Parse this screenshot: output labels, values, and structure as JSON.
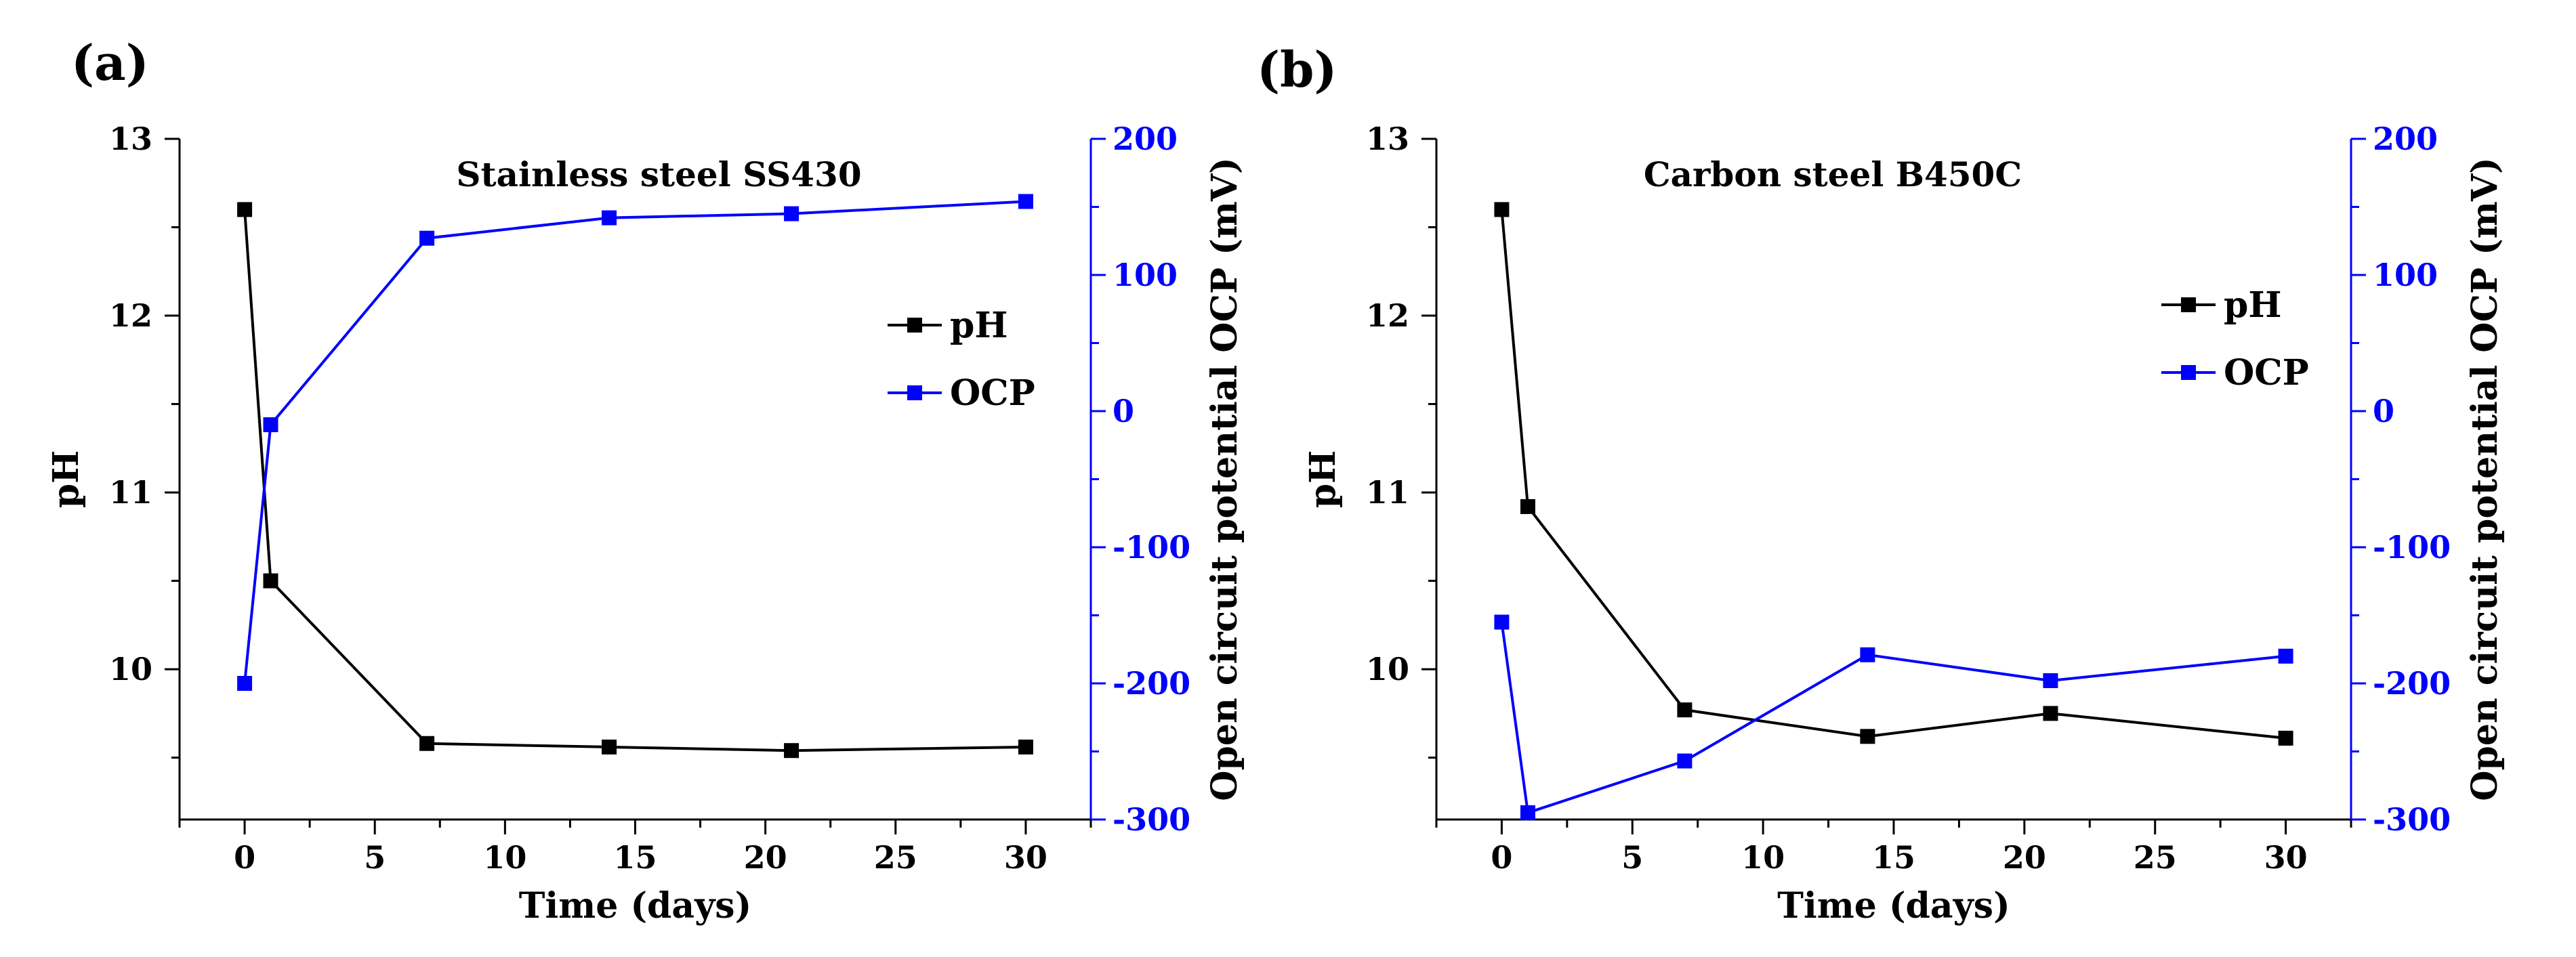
{
  "chart_data": [
    {
      "panel_label": "(a)",
      "title": "Stainless steel SS430",
      "type": "line",
      "xlabel": "Time (days)",
      "ylabel": "pH",
      "y2label": "Open circuit potential OCP (mV)",
      "xlim": [
        -2.5,
        32.5
      ],
      "ylim": [
        9.15,
        13
      ],
      "y2lim": [
        -300,
        200
      ],
      "xticks": [
        0,
        5,
        10,
        15,
        20,
        25,
        30
      ],
      "yticks": [
        10,
        11,
        12,
        13
      ],
      "y2ticks": [
        -300,
        -200,
        -100,
        0,
        100,
        200
      ],
      "legend_position": "right",
      "grid": false,
      "series": [
        {
          "name": "pH",
          "axis": "left",
          "color": "#000000",
          "x": [
            0,
            1,
            7,
            14,
            21,
            30
          ],
          "y": [
            12.6,
            10.5,
            9.58,
            9.56,
            9.54,
            9.56
          ]
        },
        {
          "name": "OCP",
          "axis": "right",
          "color": "#0000ff",
          "x": [
            0,
            1,
            7,
            14,
            21,
            30
          ],
          "y": [
            -200,
            -10,
            127,
            142,
            145,
            154
          ]
        }
      ]
    },
    {
      "panel_label": "(b)",
      "title": "Carbon steel B450C",
      "type": "line",
      "xlabel": "Time (days)",
      "ylabel": "pH",
      "y2label": "Open circuit potential OCP (mV)",
      "xlim": [
        -2.5,
        32.5
      ],
      "ylim": [
        9.15,
        13
      ],
      "y2lim": [
        -300,
        200
      ],
      "xticks": [
        0,
        5,
        10,
        15,
        20,
        25,
        30
      ],
      "yticks": [
        10,
        11,
        12,
        13
      ],
      "y2ticks": [
        -300,
        -200,
        -100,
        0,
        100,
        200
      ],
      "legend_position": "right",
      "grid": false,
      "series": [
        {
          "name": "pH",
          "axis": "left",
          "color": "#000000",
          "x": [
            0,
            1,
            7,
            14,
            21,
            30
          ],
          "y": [
            12.6,
            10.92,
            9.77,
            9.62,
            9.75,
            9.61
          ]
        },
        {
          "name": "OCP",
          "axis": "right",
          "color": "#0000ff",
          "x": [
            0,
            1,
            7,
            14,
            21,
            30
          ],
          "y": [
            -155,
            -295,
            -257,
            -179,
            -198,
            -180
          ]
        }
      ]
    }
  ]
}
